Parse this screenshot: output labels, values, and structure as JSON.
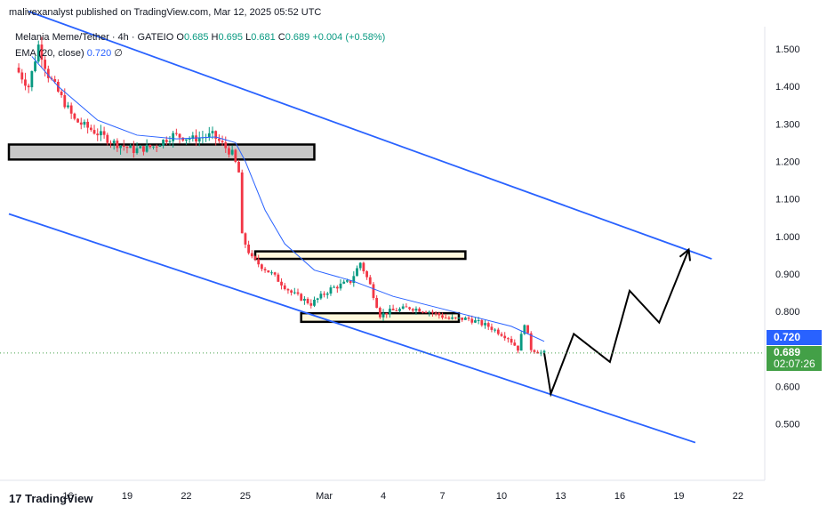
{
  "header": {
    "publisher_line": "malivexanalyst published on TradingView.com, Mar 12, 2025 05:52 UTC",
    "symbol": "Melania Meme/Tether · 4h · GATEIO",
    "o_label": "O",
    "o_value": "0.685",
    "h_label": "H",
    "h_value": "0.695",
    "l_label": "L",
    "l_value": "0.681",
    "c_label": "C",
    "c_value": "0.689",
    "change": "+0.004 (+0.58%)",
    "ema_label": "EMA (20, close)",
    "ema_value": "0.720",
    "ema_extra": "∅"
  },
  "price_tags": {
    "ema_tag": "0.720",
    "last_price": "0.689",
    "countdown": "02:07:26"
  },
  "footer": {
    "brand": "TradingView"
  },
  "colors": {
    "up": "#089981",
    "down": "#f23645",
    "ema": "#2962ff",
    "channel": "#2962ff",
    "last_price": "#43a047",
    "zone_gray": "#c8c8c8",
    "zone_cream": "#fff8dc",
    "projection": "#000000"
  },
  "chart_data": {
    "type": "candlestick",
    "title": "Melania Meme/Tether · 4h · GATEIO",
    "y_ticks": [
      "1.500",
      "1.400",
      "1.300",
      "1.200",
      "1.100",
      "1.000",
      "0.900",
      "0.800",
      "0.600",
      "0.500"
    ],
    "x_ticks": [
      "16",
      "19",
      "22",
      "25",
      "Mar",
      "4",
      "7",
      "10",
      "13",
      "16",
      "19",
      "22"
    ],
    "ylim": [
      0.42,
      1.58
    ],
    "price_path": [
      {
        "day": "Feb 13 12:00",
        "price": 1.45
      },
      {
        "day": "Feb 14 04:00",
        "price": 1.4
      },
      {
        "day": "Feb 14 16:00",
        "price": 1.51
      },
      {
        "day": "Feb 15 04:00",
        "price": 1.43
      },
      {
        "day": "Feb 15 20:00",
        "price": 1.37
      },
      {
        "day": "Feb 16 12:00",
        "price": 1.31
      },
      {
        "day": "Feb 17 12:00",
        "price": 1.28
      },
      {
        "day": "Feb 18 12:00",
        "price": 1.25
      },
      {
        "day": "Feb 19 12:00",
        "price": 1.23
      },
      {
        "day": "Feb 20 12:00",
        "price": 1.24
      },
      {
        "day": "Feb 21 12:00",
        "price": 1.27
      },
      {
        "day": "Feb 22 12:00",
        "price": 1.26
      },
      {
        "day": "Feb 23 12:00",
        "price": 1.27
      },
      {
        "day": "Feb 24 12:00",
        "price": 1.22
      },
      {
        "day": "Feb 24 20:00",
        "price": 1.17
      },
      {
        "day": "Feb 25 00:00",
        "price": 1.0
      },
      {
        "day": "Feb 25 12:00",
        "price": 0.94
      },
      {
        "day": "Feb 26 12:00",
        "price": 0.9
      },
      {
        "day": "Feb 27 12:00",
        "price": 0.85
      },
      {
        "day": "Feb 28 12:00",
        "price": 0.82
      },
      {
        "day": "Mar 1 12:00",
        "price": 0.86
      },
      {
        "day": "Mar 2 12:00",
        "price": 0.88
      },
      {
        "day": "Mar 3 00:00",
        "price": 0.93
      },
      {
        "day": "Mar 3 12:00",
        "price": 0.87
      },
      {
        "day": "Mar 4 00:00",
        "price": 0.79
      },
      {
        "day": "Mar 4 12:00",
        "price": 0.8
      },
      {
        "day": "Mar 5 12:00",
        "price": 0.81
      },
      {
        "day": "Mar 6 12:00",
        "price": 0.8
      },
      {
        "day": "Mar 7 12:00",
        "price": 0.78
      },
      {
        "day": "Mar 8 12:00",
        "price": 0.78
      },
      {
        "day": "Mar 9 12:00",
        "price": 0.76
      },
      {
        "day": "Mar 10 12:00",
        "price": 0.73
      },
      {
        "day": "Mar 11 00:00",
        "price": 0.7
      },
      {
        "day": "Mar 11 08:00",
        "price": 0.77
      },
      {
        "day": "Mar 11 16:00",
        "price": 0.7
      },
      {
        "day": "Mar 12 04:00",
        "price": 0.689
      }
    ],
    "ema_path": [
      {
        "day": "Feb 14 04:00",
        "price": 1.48
      },
      {
        "day": "Feb 15 12:00",
        "price": 1.4
      },
      {
        "day": "Feb 17 12:00",
        "price": 1.31
      },
      {
        "day": "Feb 19 12:00",
        "price": 1.27
      },
      {
        "day": "Feb 21 12:00",
        "price": 1.26
      },
      {
        "day": "Feb 23 12:00",
        "price": 1.265
      },
      {
        "day": "Feb 24 12:00",
        "price": 1.25
      },
      {
        "day": "Feb 25 00:00",
        "price": 1.2
      },
      {
        "day": "Feb 26 00:00",
        "price": 1.07
      },
      {
        "day": "Feb 27 00:00",
        "price": 0.98
      },
      {
        "day": "Feb 28 12:00",
        "price": 0.91
      },
      {
        "day": "Mar 2 12:00",
        "price": 0.88
      },
      {
        "day": "Mar 4 12:00",
        "price": 0.84
      },
      {
        "day": "Mar 7 12:00",
        "price": 0.8
      },
      {
        "day": "Mar 10 12:00",
        "price": 0.76
      },
      {
        "day": "Mar 12 04:00",
        "price": 0.72
      }
    ],
    "channel_upper": [
      {
        "day": "Feb 14 00:00",
        "price": 1.6
      },
      {
        "day": "Mar 20 16:00",
        "price": 0.94
      }
    ],
    "channel_lower": [
      {
        "day": "Feb 13 00:00",
        "price": 1.06
      },
      {
        "day": "Mar 19 20:00",
        "price": 0.45
      }
    ],
    "zones": [
      {
        "name": "gray",
        "from_day": "Feb 13 00:00",
        "to_day": "Feb 28 12:00",
        "high": 1.245,
        "low": 1.205
      },
      {
        "name": "cream-upper",
        "from_day": "Feb 25 12:00",
        "to_day": "Mar 8 04:00",
        "high": 0.96,
        "low": 0.94
      },
      {
        "name": "cream-lower",
        "from_day": "Feb 27 20:00",
        "to_day": "Mar 7 20:00",
        "high": 0.795,
        "low": 0.772
      }
    ],
    "projection": [
      {
        "day": "Mar 12 04:00",
        "price": 0.689
      },
      {
        "day": "Mar 12 12:00",
        "price": 0.58
      },
      {
        "day": "Mar 13 16:00",
        "price": 0.74
      },
      {
        "day": "Mar 15 12:00",
        "price": 0.665
      },
      {
        "day": "Mar 16 12:00",
        "price": 0.855
      },
      {
        "day": "Mar 18 00:00",
        "price": 0.77
      },
      {
        "day": "Mar 19 12:00",
        "price": 0.965
      }
    ],
    "grid": false,
    "last_price": 0.689,
    "ema_last": 0.72
  }
}
